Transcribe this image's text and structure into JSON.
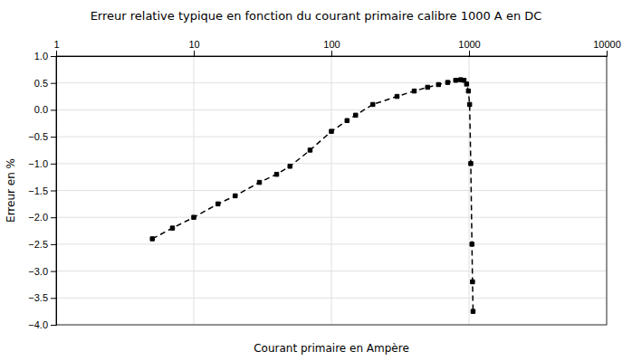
{
  "chart_data": {
    "type": "line",
    "title": "Erreur relative typique en fonction du courant primaire calibre 1000 A en DC",
    "x_label": "Courant primaire en Ampère",
    "y_label": "Erreur en %",
    "log": "x",
    "grid": true,
    "xlim": [
      1,
      10000
    ],
    "ylim": [
      -4,
      1
    ],
    "xticks": [
      1,
      10,
      100,
      1000,
      10000
    ],
    "yticks": [
      {
        "value": 1,
        "label": "1.0"
      },
      {
        "value": 0.5,
        "label": "0.5"
      },
      {
        "value": 0,
        "label": "0.0"
      },
      {
        "value": -0.5,
        "label": "−0.5"
      },
      {
        "value": -1,
        "label": "−1.0"
      },
      {
        "value": -1.5,
        "label": "−1.5"
      },
      {
        "value": -2,
        "label": "−2.0"
      },
      {
        "value": -2.5,
        "label": "−2.5"
      },
      {
        "value": -3,
        "label": "−3.0"
      },
      {
        "value": -3.5,
        "label": "−3.5"
      },
      {
        "value": -4,
        "label": "−4.0"
      }
    ],
    "x": [
      5,
      7,
      10,
      15,
      20,
      30,
      40,
      50,
      70,
      100,
      130,
      150,
      200,
      300,
      400,
      500,
      600,
      700,
      800,
      870,
      920,
      960,
      990,
      1010,
      1030,
      1050,
      1060,
      1070
    ],
    "values": [
      -2.4,
      -2.2,
      -2.0,
      -1.75,
      -1.6,
      -1.35,
      -1.2,
      -1.05,
      -0.75,
      -0.4,
      -0.2,
      -0.1,
      0.1,
      0.25,
      0.35,
      0.42,
      0.47,
      0.51,
      0.55,
      0.56,
      0.55,
      0.48,
      0.35,
      0.1,
      -1.0,
      -2.5,
      -3.2,
      -3.75
    ],
    "color": "#000000",
    "marker": "square",
    "line_style": "dashed"
  }
}
